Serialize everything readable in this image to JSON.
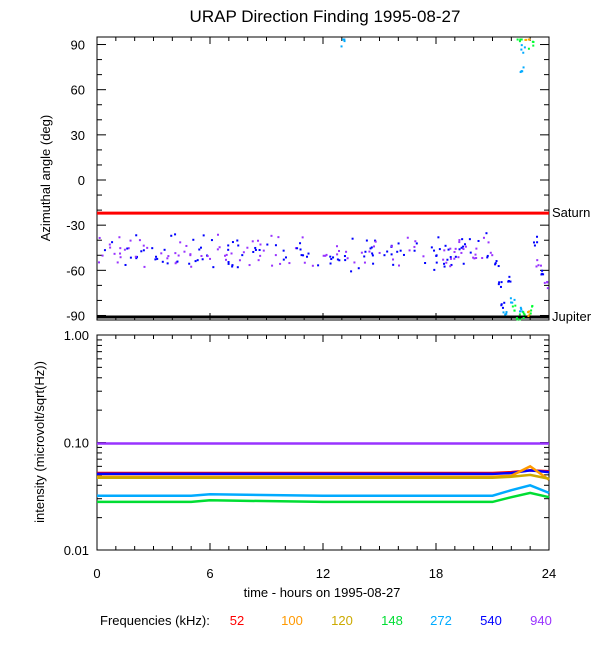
{
  "chart_data": [
    {
      "type": "scatter",
      "panel": "top",
      "title": "URAP Direction Finding  1995-08-27",
      "ylabel": "Azimuthal angle (deg)",
      "xlim": [
        0,
        24
      ],
      "ylim": [
        -93,
        95
      ],
      "yticks": [
        90,
        60,
        30,
        0,
        -30,
        -60,
        -90
      ],
      "ytick_labels": [
        "90",
        "60",
        "30",
        "0",
        "-30",
        "-60",
        "-90"
      ],
      "reference_lines": [
        {
          "label": "Saturn",
          "value": -22,
          "color": "#ff0000"
        },
        {
          "label": "Jupiter",
          "value": -91,
          "color": "#000000"
        }
      ],
      "scatter_band": {
        "x_range": [
          0,
          21
        ],
        "y_center": -47,
        "y_spread": 10,
        "colors": [
          "#0000ff",
          "#9933ff"
        ]
      },
      "scatter_late": [
        {
          "x": 21.2,
          "y": -55,
          "color": "#0000ff"
        },
        {
          "x": 21.4,
          "y": -70,
          "color": "#0000ff"
        },
        {
          "x": 21.5,
          "y": -82,
          "color": "#0000ff"
        },
        {
          "x": 21.6,
          "y": -88,
          "color": "#00aaff"
        },
        {
          "x": 21.8,
          "y": -65,
          "color": "#0000ff"
        },
        {
          "x": 22.0,
          "y": -78,
          "color": "#00aaff"
        },
        {
          "x": 22.1,
          "y": -85,
          "color": "#00ff33"
        },
        {
          "x": 22.3,
          "y": -90,
          "color": "#00ff33"
        },
        {
          "x": 22.5,
          "y": -84,
          "color": "#00aaff"
        },
        {
          "x": 22.6,
          "y": -88,
          "color": "#00ff33"
        },
        {
          "x": 22.8,
          "y": -89,
          "color": "#ffaa00"
        },
        {
          "x": 23.0,
          "y": -86,
          "color": "#00ff33"
        },
        {
          "x": 23.2,
          "y": -40,
          "color": "#0000ff"
        },
        {
          "x": 23.4,
          "y": -55,
          "color": "#9933ff"
        },
        {
          "x": 23.6,
          "y": -62,
          "color": "#0000ff"
        },
        {
          "x": 23.8,
          "y": -70,
          "color": "#9933ff"
        },
        {
          "x": 22.4,
          "y": 92,
          "color": "#00ff33"
        },
        {
          "x": 22.6,
          "y": 88,
          "color": "#00aaff"
        },
        {
          "x": 22.8,
          "y": 93,
          "color": "#ffaa00"
        },
        {
          "x": 23.0,
          "y": 90,
          "color": "#00ff33"
        },
        {
          "x": 22.5,
          "y": 75,
          "color": "#00aaff"
        },
        {
          "x": 13.0,
          "y": 92,
          "color": "#00aaff"
        }
      ]
    },
    {
      "type": "line",
      "panel": "bottom",
      "ylabel": "intensity (microvolt/sqrt(Hz))",
      "xlabel": "time - hours on 1995-08-27",
      "scale": "log",
      "xlim": [
        0,
        24
      ],
      "ylim": [
        0.01,
        1.0
      ],
      "xticks": [
        0,
        6,
        12,
        18,
        24
      ],
      "xtick_labels": [
        "0",
        "6",
        "12",
        "18",
        "24"
      ],
      "yticks": [
        1.0,
        0.1,
        0.01
      ],
      "ytick_labels": [
        "1.00",
        "0.10",
        "0.01"
      ],
      "series": [
        {
          "name": "940",
          "color": "#9933ff",
          "x": [
            0,
            24
          ],
          "values": [
            0.098,
            0.098
          ]
        },
        {
          "name": "52",
          "color": "#ff0000",
          "x": [
            0,
            21,
            22,
            23,
            24
          ],
          "values": [
            0.052,
            0.052,
            0.053,
            0.055,
            0.054
          ]
        },
        {
          "name": "540",
          "color": "#0000ff",
          "x": [
            0,
            21,
            22,
            23,
            24
          ],
          "values": [
            0.051,
            0.051,
            0.052,
            0.055,
            0.053
          ]
        },
        {
          "name": "100",
          "color": "#ff9900",
          "x": [
            0,
            21,
            22,
            23,
            24
          ],
          "values": [
            0.048,
            0.048,
            0.049,
            0.06,
            0.045
          ]
        },
        {
          "name": "120",
          "color": "#ccaa00",
          "x": [
            0,
            21,
            22,
            23,
            24
          ],
          "values": [
            0.047,
            0.047,
            0.048,
            0.05,
            0.046
          ]
        },
        {
          "name": "272",
          "color": "#00aaff",
          "x": [
            0,
            5,
            6,
            12,
            21,
            22,
            23,
            24
          ],
          "values": [
            0.032,
            0.032,
            0.033,
            0.032,
            0.032,
            0.036,
            0.04,
            0.034
          ]
        },
        {
          "name": "148",
          "color": "#00dd33",
          "x": [
            0,
            5,
            6,
            12,
            21,
            22,
            23,
            24
          ],
          "values": [
            0.028,
            0.028,
            0.029,
            0.028,
            0.028,
            0.031,
            0.034,
            0.031
          ]
        }
      ]
    }
  ],
  "legend": {
    "label": "Frequencies (kHz):",
    "items": [
      {
        "text": "52",
        "color": "#ff0000"
      },
      {
        "text": "100",
        "color": "#ff9900"
      },
      {
        "text": "120",
        "color": "#ccaa00"
      },
      {
        "text": "148",
        "color": "#00dd33"
      },
      {
        "text": "272",
        "color": "#00aaff"
      },
      {
        "text": "540",
        "color": "#0000ff"
      },
      {
        "text": "940",
        "color": "#9933ff"
      }
    ]
  }
}
